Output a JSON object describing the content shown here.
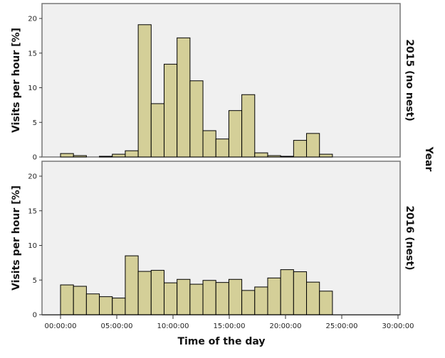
{
  "chart_data": {
    "type": "bar",
    "title": "",
    "xlabel": "Time of the day",
    "ylabel": "Visits per hour [%]",
    "facet_label": "Year",
    "xlim_hours": [
      -1.5,
      30.2
    ],
    "x_tick_labels": [
      "00:00:00",
      "05:00:00",
      "10:00:00",
      "15:00:00",
      "20:00:00",
      "25:00:00",
      "30:00:00"
    ],
    "x_tick_values_hours": [
      0,
      5,
      10,
      15,
      20,
      25,
      30
    ],
    "ylim": [
      0,
      22
    ],
    "y_ticks": [
      0,
      5,
      10,
      15,
      20
    ],
    "bin_start_hours": 0,
    "bin_width_hours": 1.151,
    "grid": false,
    "colors": {
      "bar": "#d4cf98",
      "panel": "#f0f0f0",
      "edge": "#000000"
    },
    "panels": [
      {
        "name": "2015 (no nest)",
        "values": [
          0.5,
          0.2,
          0,
          0.1,
          0.4,
          0.9,
          19.1,
          7.7,
          13.4,
          17.2,
          11.0,
          3.8,
          2.6,
          6.7,
          9.0,
          0.6,
          0.2,
          0.1,
          2.4,
          3.4,
          0.4
        ]
      },
      {
        "name": "2016 (nest)",
        "values": [
          4.3,
          4.1,
          3.0,
          2.6,
          2.4,
          8.5,
          6.25,
          6.4,
          4.6,
          5.1,
          4.4,
          4.95,
          4.65,
          5.1,
          3.5,
          4.0,
          5.3,
          6.5,
          6.2,
          4.7,
          3.4
        ]
      }
    ]
  }
}
